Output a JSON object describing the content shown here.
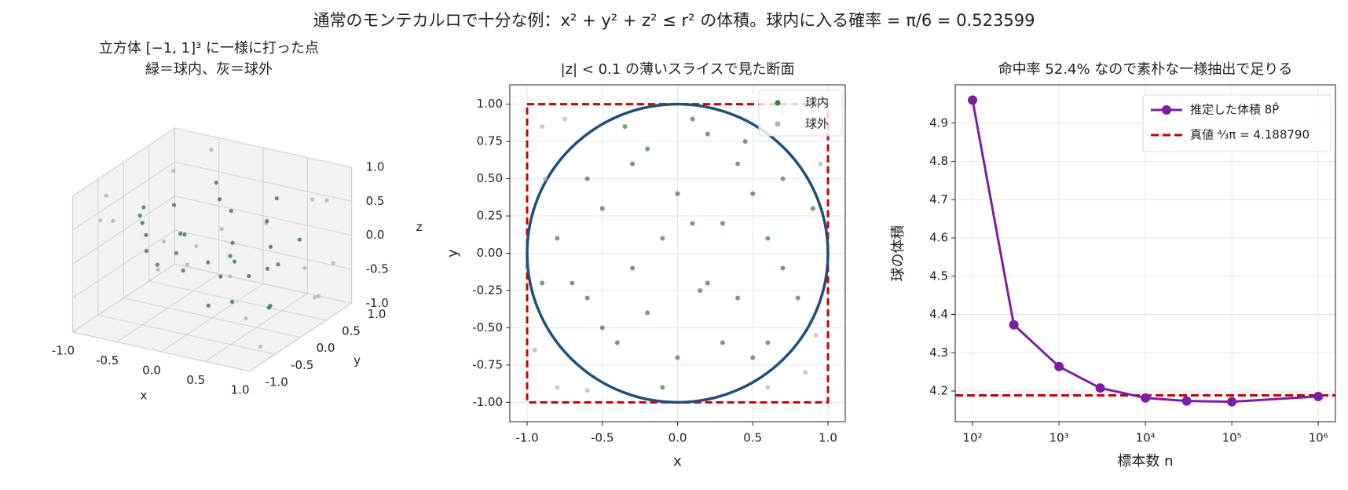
{
  "title": "通常のモンテカルロで十分な例：x² + y² + z² ≤ r² の体積。球内に入る確率 = π/6 = 0.523599",
  "chart_data": [
    {
      "type": "scatter3d",
      "title": "立方体 [−1, 1]³ に一様に打った点",
      "subtitle": "緑＝球内、灰＝球外",
      "xlabel": "x",
      "ylabel": "y",
      "zlabel": "z",
      "xlim": [
        -1,
        1
      ],
      "ylim": [
        -1,
        1
      ],
      "zlim": [
        -1,
        1
      ],
      "xticks": [
        {
          "value": -1,
          "label": "-1.0"
        },
        -0.5,
        {
          "value": 0,
          "label": "0.0"
        },
        0.5,
        {
          "value": 1,
          "label": "1.0"
        }
      ],
      "yticks": [
        {
          "value": -1,
          "label": "-1.0"
        },
        -0.5,
        {
          "value": 0,
          "label": "0.0"
        },
        0.5,
        {
          "value": 1,
          "label": "1.0"
        }
      ],
      "zticks": [
        {
          "value": -1,
          "label": "-1.0"
        },
        -0.5,
        {
          "value": 0,
          "label": "0.0"
        },
        0.5,
        {
          "value": 1,
          "label": "1.0"
        }
      ],
      "series": [
        {
          "color": "#b0b0b0",
          "x": [
            -0.9,
            0.9,
            0.8,
            -0.8,
            0.95,
            -0.7,
            0.6,
            -0.9,
            0.85,
            -0.6,
            0.9,
            -0.95,
            0.7,
            -0.85,
            0.5,
            0.9,
            -0.8,
            0.75,
            -0.5,
            0.95
          ],
          "y": [
            0.8,
            -0.9,
            0.7,
            -0.8,
            0.6,
            0.9,
            -0.85,
            0.5,
            0.9,
            -0.9,
            -0.5,
            0.7,
            0.8,
            -0.6,
            0.95,
            0.4,
            0.9,
            -0.95,
            0.85,
            -0.7
          ],
          "z": [
            0.5,
            -0.3,
            -0.8,
            0.6,
            0.7,
            -0.6,
            0.9,
            -0.8,
            -0.4,
            0.7,
            0.9,
            -0.5,
            -0.9,
            0.85,
            -0.6,
            0.8,
            -0.9,
            0.3,
            0.9,
            -0.8
          ]
        },
        {
          "color": "#2e7d32",
          "x": [
            0.1,
            -0.5,
            0.3,
            0.6,
            -0.2,
            0.7,
            -0.7,
            0.2,
            -0.3,
            0.4,
            0.0,
            -0.6,
            0.5,
            -0.1,
            0.8,
            -0.4,
            0.3,
            -0.8,
            0.1,
            0.6,
            -0.5,
            0.2,
            -0.2,
            0.4,
            -0.3,
            0.0,
            0.5,
            -0.6,
            0.7,
            -0.1
          ],
          "y": [
            0.2,
            0.3,
            -0.6,
            0.1,
            -0.4,
            0.5,
            -0.2,
            0.8,
            0.6,
            -0.3,
            -0.7,
            0.5,
            0.4,
            0.1,
            -0.3,
            -0.6,
            0.2,
            0.1,
            0.9,
            -0.6,
            -0.5,
            -0.2,
            0.7,
            0.6,
            -0.1,
            0.4,
            -0.7,
            -0.3,
            -0.1,
            -0.9
          ],
          "z": [
            0.5,
            -0.6,
            0.2,
            -0.7,
            0.8,
            0.1,
            0.4,
            -0.3,
            0.6,
            -0.5,
            0.3,
            -0.2,
            0.7,
            -0.9,
            0.1,
            0.4,
            -0.4,
            -0.3,
            0.0,
            0.3,
            0.5,
            0.9,
            -0.5,
            -0.4,
            0.2,
            -0.1,
            0.1,
            0.6,
            -0.6,
            0.2
          ]
        }
      ]
    },
    {
      "type": "scatter",
      "title": "|z| < 0.1 の薄いスライスで見た断面",
      "xlabel": "x",
      "ylabel": "y",
      "xlim": [
        -1.115,
        1.115
      ],
      "ylim": [
        -1.13,
        1.13
      ],
      "xticks": [
        {
          "value": -1,
          "label": "-1.0"
        },
        -0.5,
        {
          "value": 0,
          "label": "0.0"
        },
        0.5,
        {
          "value": 1,
          "label": "1.0"
        }
      ],
      "yticks": [
        {
          "value": -1,
          "label": "-1.00"
        },
        -0.75,
        {
          "value": -0.5,
          "label": "-0.50"
        },
        -0.25,
        {
          "value": 0,
          "label": "0.00"
        },
        0.25,
        {
          "value": 0.5,
          "label": "0.50"
        },
        0.75,
        {
          "value": 1,
          "label": "1.00"
        }
      ],
      "grid": true,
      "legend": "upper right",
      "circle": {
        "radius": 1,
        "color": "#1f4e79"
      },
      "box": {
        "xlim": [
          -1,
          1
        ],
        "ylim": [
          -1,
          1
        ],
        "color": "#cc0000"
      },
      "series": [
        {
          "name": "球内",
          "color": "#2e7d32",
          "x": [
            0.1,
            -0.5,
            0.3,
            0.6,
            -0.2,
            0.7,
            -0.7,
            0.2,
            -0.3,
            0.4,
            0.0,
            -0.6,
            0.5,
            -0.1,
            0.8,
            -0.4,
            0.3,
            -0.8,
            0.1,
            0.6,
            -0.5,
            0.2,
            -0.2,
            0.4,
            -0.3,
            0.0,
            0.5,
            -0.6,
            0.7,
            -0.1,
            0.9,
            -0.9,
            0.15,
            -0.35,
            0.45
          ],
          "values": [
            0.2,
            0.3,
            -0.6,
            0.1,
            -0.4,
            0.5,
            -0.2,
            0.8,
            0.6,
            -0.3,
            -0.7,
            0.5,
            0.4,
            0.1,
            -0.3,
            -0.6,
            0.2,
            0.1,
            0.9,
            -0.6,
            -0.5,
            -0.2,
            0.7,
            0.6,
            -0.1,
            0.4,
            -0.7,
            -0.3,
            -0.1,
            -0.9,
            0.3,
            -0.2,
            -0.25,
            0.85,
            0.75
          ]
        },
        {
          "name": "球外",
          "color": "#b0b0b0",
          "x": [
            0.9,
            -0.9,
            0.85,
            -0.8,
            0.95,
            -0.95,
            0.7,
            -0.75,
            0.92,
            -0.88,
            0.6,
            -0.6
          ],
          "values": [
            0.9,
            0.85,
            -0.8,
            -0.9,
            0.6,
            -0.65,
            0.95,
            0.9,
            -0.55,
            0.5,
            -0.9,
            -0.92
          ]
        }
      ]
    },
    {
      "type": "line",
      "title": "命中率 52.4% なので素朴な一様抽出で足りる",
      "xlabel": "標本数 n",
      "ylabel": "球の体積",
      "xscale": "log",
      "grid": true,
      "legend": "upper right",
      "xlim": [
        63,
        1580000
      ],
      "ylim": [
        4.12,
        5.0
      ],
      "xticks": [
        {
          "value": 100,
          "label": "10²"
        },
        {
          "value": 1000,
          "label": "10³"
        },
        {
          "value": 10000,
          "label": "10⁴"
        },
        {
          "value": 100000,
          "label": "10⁵"
        },
        {
          "value": 1000000,
          "label": "10⁶"
        }
      ],
      "yticks": [
        4.2,
        4.3,
        4.4,
        4.5,
        4.6,
        4.7,
        4.8,
        4.9
      ],
      "x": [
        100,
        300,
        1000,
        3000,
        10000,
        30000,
        100000,
        1000000
      ],
      "series": [
        {
          "name": "推定した体積 8P̂",
          "color": "#7b1fa2",
          "values": [
            4.96,
            4.373,
            4.264,
            4.208,
            4.182,
            4.174,
            4.172,
            4.186
          ]
        }
      ],
      "hline": {
        "value": 4.18879,
        "name": "真値 ⁴⁄₃π = 4.188790",
        "color": "#cc0000"
      }
    }
  ]
}
